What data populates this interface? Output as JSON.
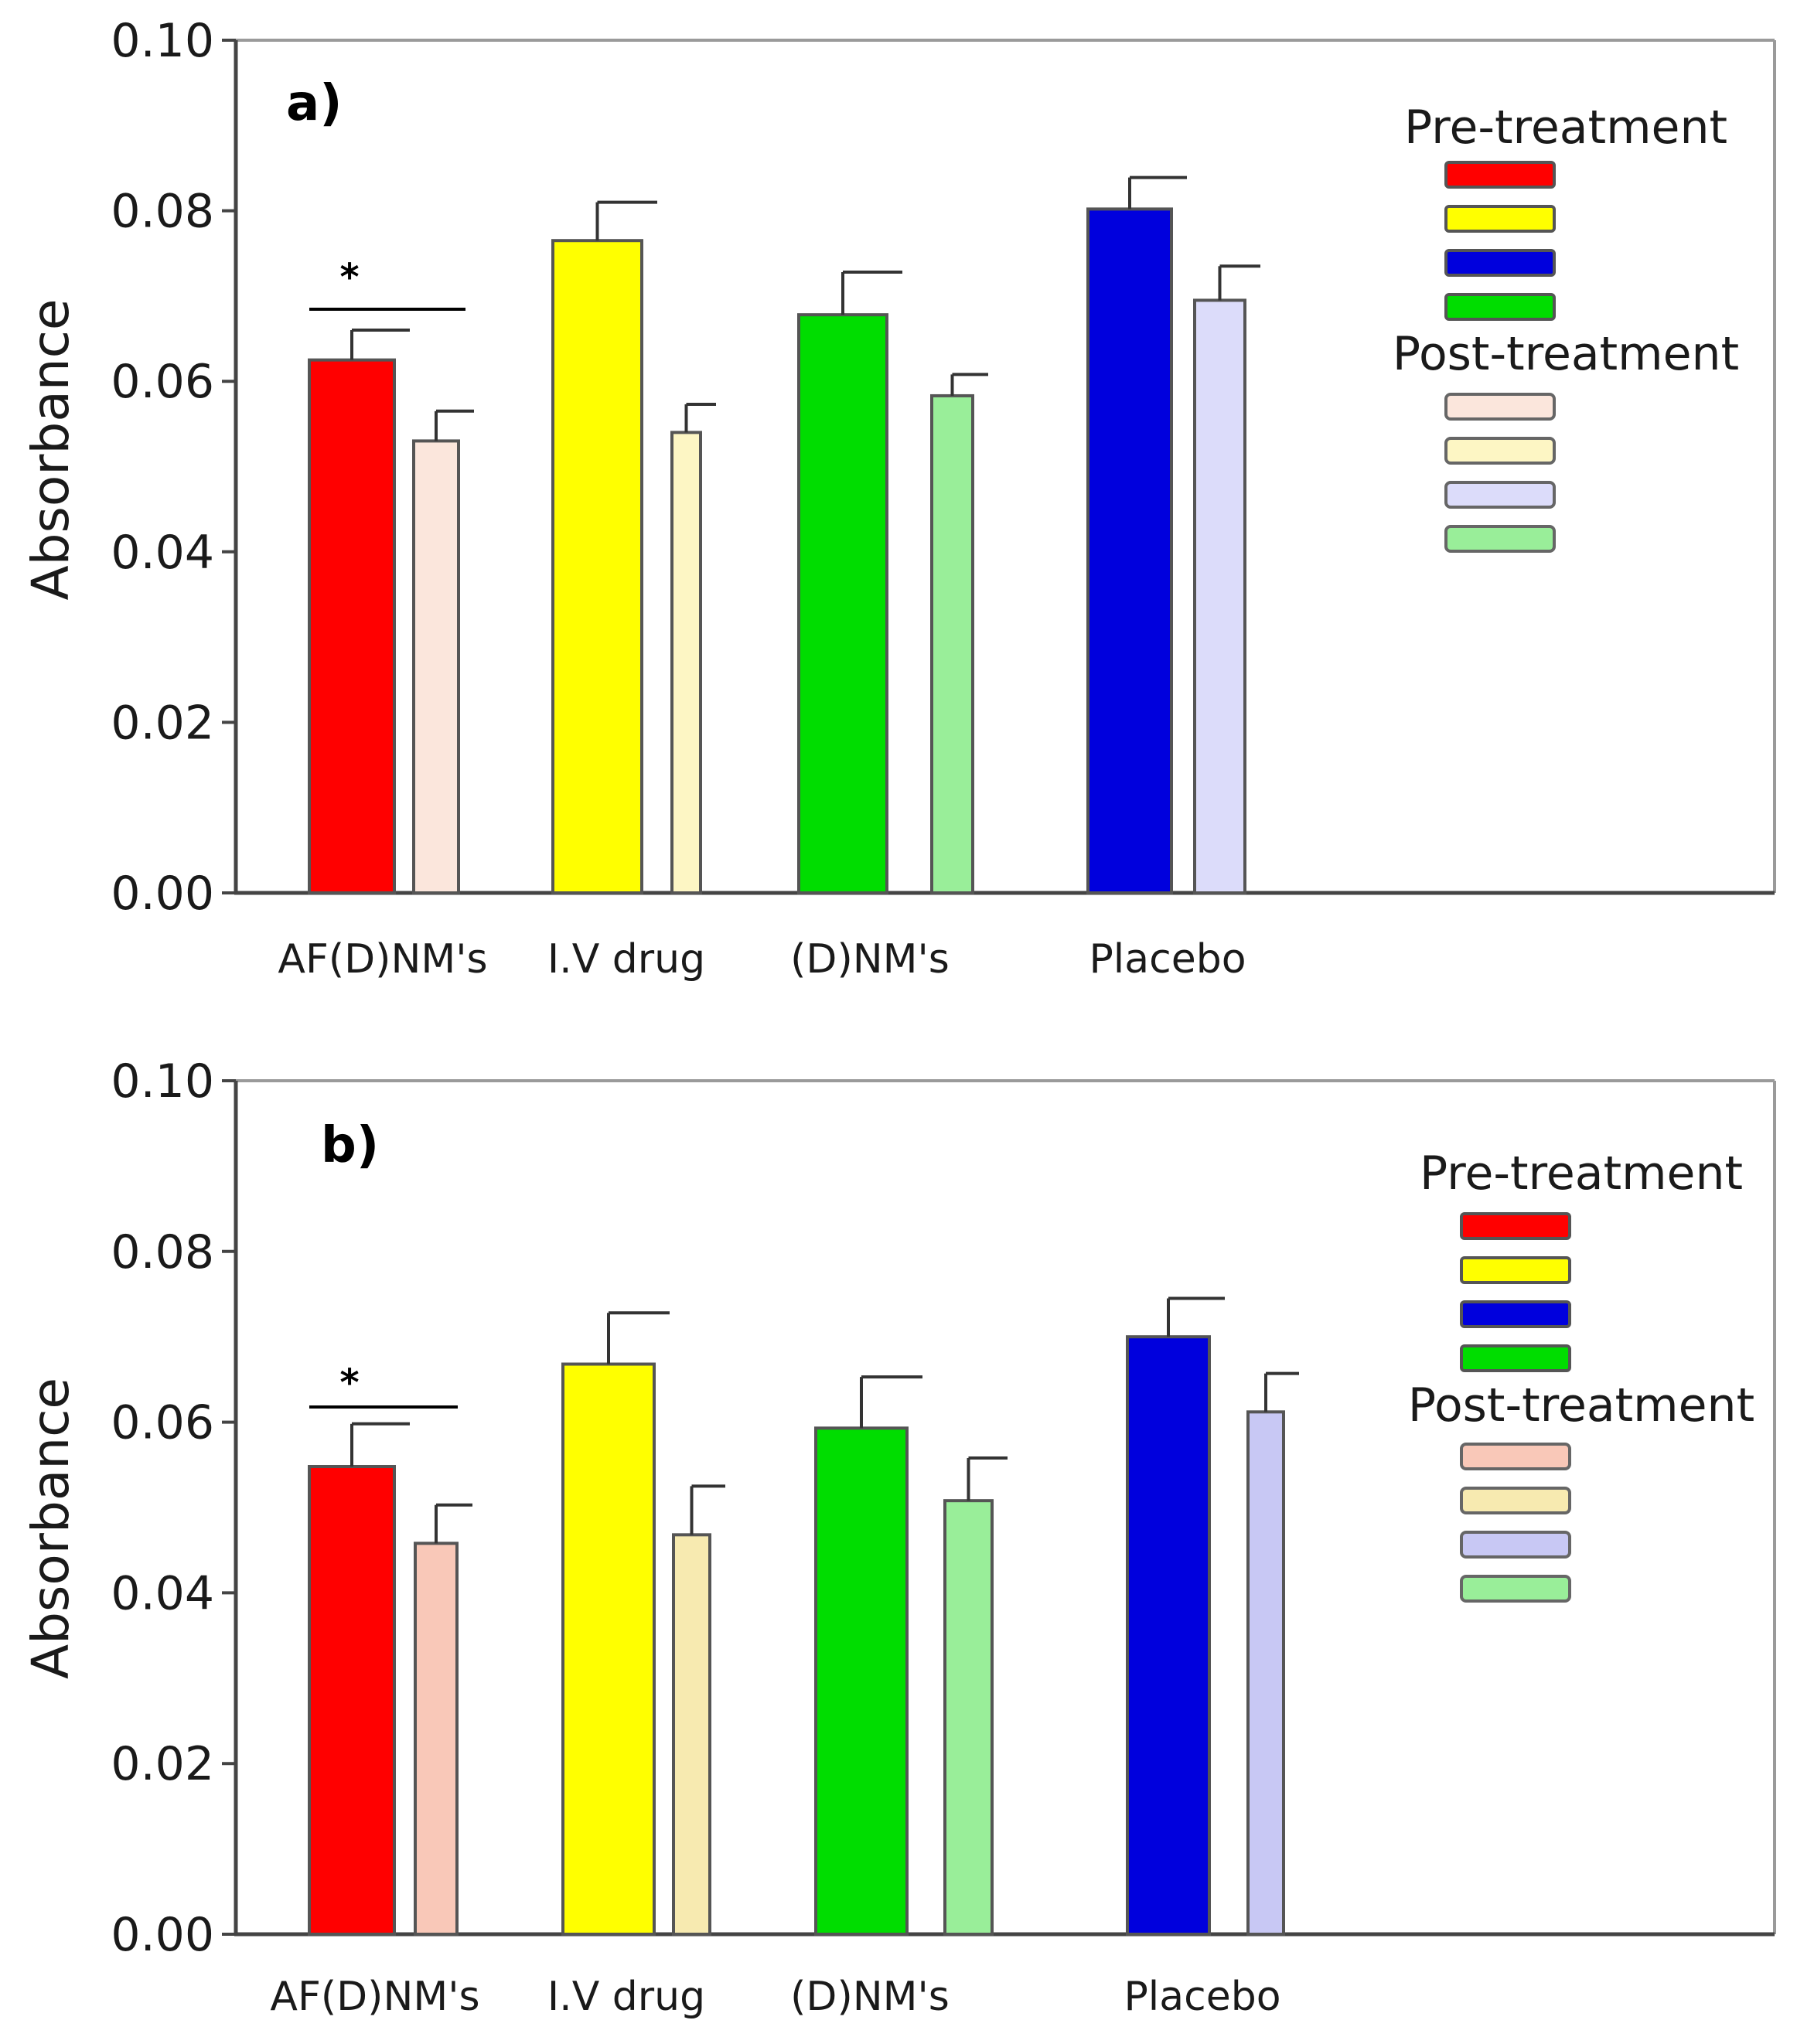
{
  "colors": {
    "pre": [
      "#ff0000",
      "#ffff00",
      "#0000dd",
      "#00dd00"
    ],
    "post": [
      "#fbe6dc",
      "#fdf6c4",
      "#dcdcfa",
      "#99ee99"
    ],
    "post_b": [
      "#f9c8b8",
      "#f7eab0",
      "#c8c8f4",
      "#99ee99"
    ],
    "axis": "#444444",
    "frame": "#9a9a9a"
  },
  "chart_data": [
    {
      "type": "bar",
      "panel_label": "a)",
      "ylabel": "Absorbance",
      "ylim": [
        0,
        0.1
      ],
      "yticks": [
        "0.00",
        "0.02",
        "0.04",
        "0.06",
        "0.08",
        "0.10"
      ],
      "categories": [
        "AF(D)NM's",
        "I.V drug",
        "(D)NM's",
        "Placebo"
      ],
      "series": [
        {
          "name": "Pre-treatment",
          "values": [
            0.0625,
            0.0765,
            0.0678,
            0.0802
          ],
          "errors": [
            0.0035,
            0.0045,
            0.005,
            0.0037
          ]
        },
        {
          "name": "Post-treatment",
          "values": [
            0.053,
            0.054,
            0.0583,
            0.0695
          ],
          "errors": [
            0.0035,
            0.0033,
            0.0025,
            0.004
          ]
        }
      ],
      "legend_titles": [
        "Pre-treatment",
        "Post-treatment"
      ],
      "legend_position": "top-right",
      "significance": {
        "label": "*",
        "between": "AF(D)NM's pre vs post"
      }
    },
    {
      "type": "bar",
      "panel_label": "b)",
      "ylabel": "Absorbance",
      "ylim": [
        0,
        0.1
      ],
      "yticks": [
        "0.00",
        "0.02",
        "0.04",
        "0.06",
        "0.08",
        "0.10"
      ],
      "categories": [
        "AF(D)NM's",
        "I.V drug",
        "(D)NM's",
        "Placebo"
      ],
      "series": [
        {
          "name": "Pre-treatment",
          "values": [
            0.0548,
            0.0668,
            0.0593,
            0.07
          ],
          "errors": [
            0.005,
            0.006,
            0.006,
            0.0045
          ]
        },
        {
          "name": "Post-treatment",
          "values": [
            0.0458,
            0.0468,
            0.0508,
            0.0612
          ],
          "errors": [
            0.0045,
            0.0057,
            0.005,
            0.0045
          ]
        }
      ],
      "legend_titles": [
        "Pre-treatment",
        "Post-treatment"
      ],
      "legend_position": "top-right",
      "significance": {
        "label": "*",
        "between": "AF(D)NM's pre vs post"
      }
    }
  ]
}
